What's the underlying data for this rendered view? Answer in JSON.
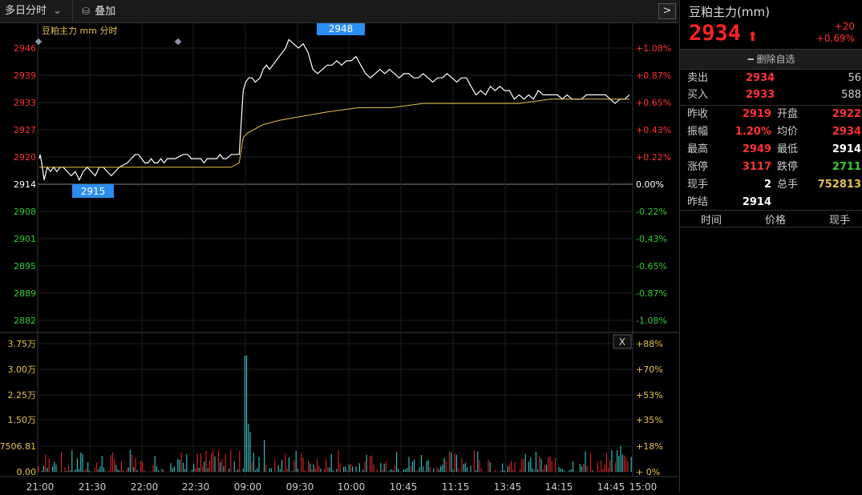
{
  "toolbar": {
    "period_label": "多日分时",
    "overlay_label": "叠加",
    "next_label": ">"
  },
  "chart": {
    "legend": "豆粕主力 mm 分时",
    "high_callout": "2948",
    "low_callout": "2915",
    "close_button": "X",
    "colors": {
      "up": "#ff3333",
      "down": "#33cc33",
      "price_line": "#ffffff",
      "avg_line": "#e6c34a",
      "vol_up": "#e02424",
      "vol_down": "#39c6c6"
    }
  },
  "chart_data": {
    "type": "line",
    "price_axis_left": [
      "2946",
      "2939",
      "2933",
      "2927",
      "2920",
      "2914",
      "2908",
      "2901",
      "2895",
      "2889",
      "2882"
    ],
    "price_axis_right": [
      "+1.08%",
      "+0.87%",
      "+0.65%",
      "+0.43%",
      "+0.22%",
      "0.00%",
      "-0.22%",
      "-0.43%",
      "-0.65%",
      "-0.87%",
      "-1.08%"
    ],
    "ylim": [
      2882,
      2946
    ],
    "baseline": 2914,
    "x_ticks": [
      "21:00",
      "21:30",
      "22:00",
      "22:30",
      "09:00",
      "09:30",
      "10:00",
      "10:45",
      "11:15",
      "13:45",
      "14:15",
      "14:45",
      "15:00"
    ],
    "volume_axis_left": [
      "3.75万",
      "3.00万",
      "2.25万",
      "1.50万",
      "7506.81",
      "0.00"
    ],
    "volume_axis_right": [
      "+88%",
      "+70%",
      "+53%",
      "+35%",
      "+18%",
      "+ 0%"
    ],
    "volume_max": 37500,
    "series": [
      {
        "name": "分时",
        "x": [
          0,
          1,
          3,
          6,
          10,
          14,
          18,
          22,
          26,
          30,
          35,
          40,
          45,
          50,
          55,
          60,
          65,
          70,
          75,
          80,
          85,
          90,
          95,
          100,
          110,
          115,
          120,
          124,
          128,
          132,
          136,
          140,
          144,
          148,
          152,
          156,
          160,
          164,
          170,
          180,
          186,
          190,
          194,
          198,
          202,
          206,
          210,
          214,
          218,
          222,
          226,
          230,
          234,
          240,
          250,
          255,
          258,
          262,
          266,
          270,
          276,
          280,
          284,
          288,
          292,
          296,
          300,
          304,
          308,
          312,
          318,
          324,
          330,
          336,
          342,
          348,
          354,
          360,
          366,
          372,
          378,
          384,
          390,
          396,
          402,
          408,
          414,
          420,
          426,
          432,
          438,
          444,
          450,
          456,
          462,
          468,
          474,
          480,
          486,
          492,
          498,
          504,
          510,
          516,
          522,
          528,
          534,
          540,
          546,
          552,
          558,
          564,
          570,
          576,
          582,
          588,
          594,
          600,
          606,
          612,
          618,
          624,
          630,
          636,
          642,
          648,
          654,
          660,
          666,
          672,
          678,
          684,
          690,
          696,
          702,
          708,
          714,
          720,
          726,
          732,
          738
        ],
        "values": [
          2920,
          2921,
          2919,
          2915,
          2918,
          2917,
          2918,
          2917,
          2918,
          2918,
          2917,
          2916,
          2917,
          2915,
          2917,
          2918,
          2917,
          2916,
          2918,
          2918,
          2917,
          2916,
          2917,
          2918,
          2919,
          2920,
          2921,
          2921,
          2920,
          2919,
          2919,
          2920,
          2919,
          2919,
          2920,
          2919,
          2920,
          2920,
          2920,
          2921,
          2921,
          2920,
          2920,
          2920,
          2920,
          2919,
          2920,
          2920,
          2920,
          2920,
          2921,
          2920,
          2920,
          2921,
          2921,
          2936,
          2938,
          2939,
          2939,
          2938,
          2939,
          2941,
          2942,
          2941,
          2942,
          2943,
          2944,
          2945,
          2946,
          2948,
          2947,
          2946,
          2947,
          2945,
          2941,
          2940,
          2941,
          2942,
          2942,
          2943,
          2942,
          2943,
          2943,
          2944,
          2942,
          2940,
          2939,
          2940,
          2941,
          2940,
          2941,
          2940,
          2939,
          2940,
          2940,
          2939,
          2939,
          2940,
          2939,
          2938,
          2939,
          2939,
          2940,
          2939,
          2938,
          2939,
          2939,
          2937,
          2935,
          2936,
          2935,
          2937,
          2936,
          2937,
          2936,
          2936,
          2934,
          2935,
          2934,
          2935,
          2934,
          2936,
          2935,
          2935,
          2935,
          2935,
          2934,
          2935,
          2934,
          2934,
          2934,
          2935,
          2935,
          2935,
          2935,
          2935,
          2934,
          2933,
          2934,
          2934,
          2935
        ]
      },
      {
        "name": "均价",
        "x": [
          0,
          240,
          250,
          255,
          260,
          270,
          280,
          300,
          330,
          360,
          400,
          440,
          480,
          520,
          560,
          600,
          640,
          680,
          700,
          720,
          738
        ],
        "values": [
          2918,
          2918,
          2919,
          2925,
          2926,
          2927,
          2928,
          2929,
          2930,
          2931,
          2932,
          2932,
          2933,
          2933,
          2933,
          2933,
          2934,
          2934,
          2934,
          2934,
          2934
        ]
      }
    ]
  },
  "sidebar": {
    "title": "豆粕主力(mm)",
    "price": "2934",
    "change": "+20",
    "change_pct": "+0.69%",
    "delete_button": "删除自选",
    "sell_label": "卖出",
    "sell_price": "2934",
    "sell_qty": "56",
    "buy_label": "买入",
    "buy_price": "2933",
    "buy_qty": "588",
    "stats": [
      {
        "l1": "昨收",
        "v1": "2919",
        "l2": "开盘",
        "v2": "2922",
        "c1": "#ff3333",
        "c2": "#ff3333"
      },
      {
        "l1": "振幅",
        "v1": "1.20%",
        "l2": "均价",
        "v2": "2934",
        "c1": "#ff3333",
        "c2": "#ff3333"
      },
      {
        "l1": "最高",
        "v1": "2949",
        "l2": "最低",
        "v2": "2914",
        "c1": "#ff3333",
        "c2": "#ffffff"
      },
      {
        "l1": "涨停",
        "v1": "3117",
        "l2": "跌停",
        "v2": "2711",
        "c1": "#ff3333",
        "c2": "#33cc33"
      },
      {
        "l1": "现手",
        "v1": "2",
        "l2": "总手",
        "v2": "752813",
        "c1": "#ffffff",
        "c2": "#e6c34a"
      },
      {
        "l1": "昨结",
        "v1": "2914",
        "l2": "",
        "v2": "",
        "c1": "#ffffff",
        "c2": "#ffffff"
      }
    ],
    "table_headers": [
      "时间",
      "价格",
      "现手"
    ]
  }
}
